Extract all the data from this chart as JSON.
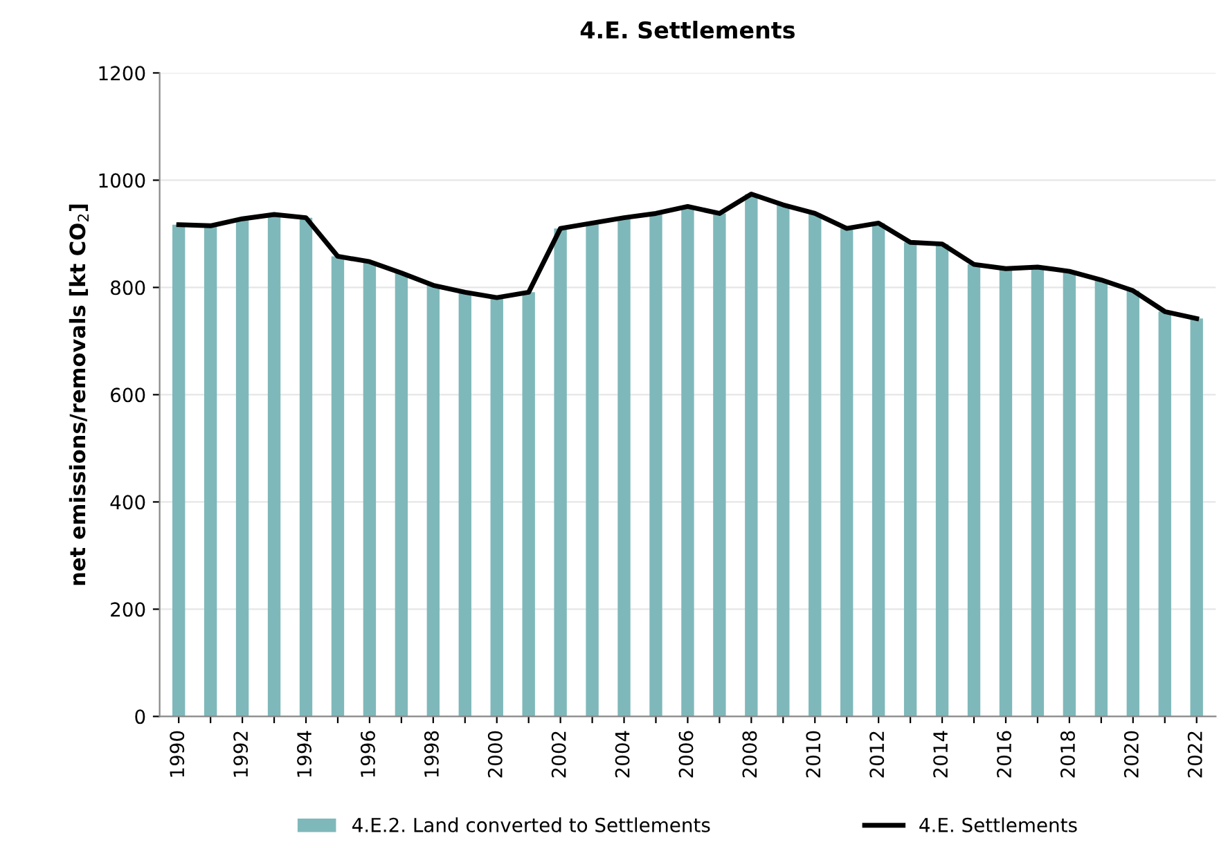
{
  "chart_data": {
    "type": "bar",
    "title": "4.E. Settlements",
    "ylabel": "net emissions/removals [kt CO$_{2}$]",
    "categories": [
      "1990",
      null,
      "1992",
      null,
      "1994",
      null,
      "1996",
      null,
      "1998",
      null,
      "2000",
      null,
      "2002",
      null,
      "2004",
      null,
      "2006",
      null,
      "2008",
      null,
      "2010",
      null,
      "2012",
      null,
      "2014",
      null,
      "2016",
      null,
      "2018",
      null,
      "2020",
      null,
      "2022"
    ],
    "series": [
      {
        "name": "4.E.2. Land converted to Settlements",
        "color": "#7fb8ba",
        "values": [
          917,
          915,
          928,
          936,
          930,
          858,
          848,
          827,
          804,
          791,
          781,
          791,
          910,
          920,
          930,
          938,
          951,
          938,
          974,
          954,
          938,
          910,
          920,
          884,
          881,
          843,
          835,
          838,
          830,
          814,
          794,
          755,
          742
        ]
      },
      {
        "name": "4.E. Settlements",
        "type": "line",
        "color": "#000000",
        "values": [
          917,
          915,
          928,
          936,
          930,
          858,
          848,
          827,
          804,
          791,
          781,
          791,
          910,
          920,
          930,
          938,
          951,
          938,
          974,
          954,
          938,
          910,
          920,
          884,
          881,
          843,
          835,
          838,
          830,
          814,
          794,
          755,
          742
        ]
      }
    ],
    "ylim": [
      0,
      1200
    ],
    "yticks": [
      0,
      200,
      400,
      600,
      800,
      1000,
      1200
    ],
    "grid": "y",
    "legend": "bottom",
    "marker": "none",
    "line_style": "solid"
  }
}
